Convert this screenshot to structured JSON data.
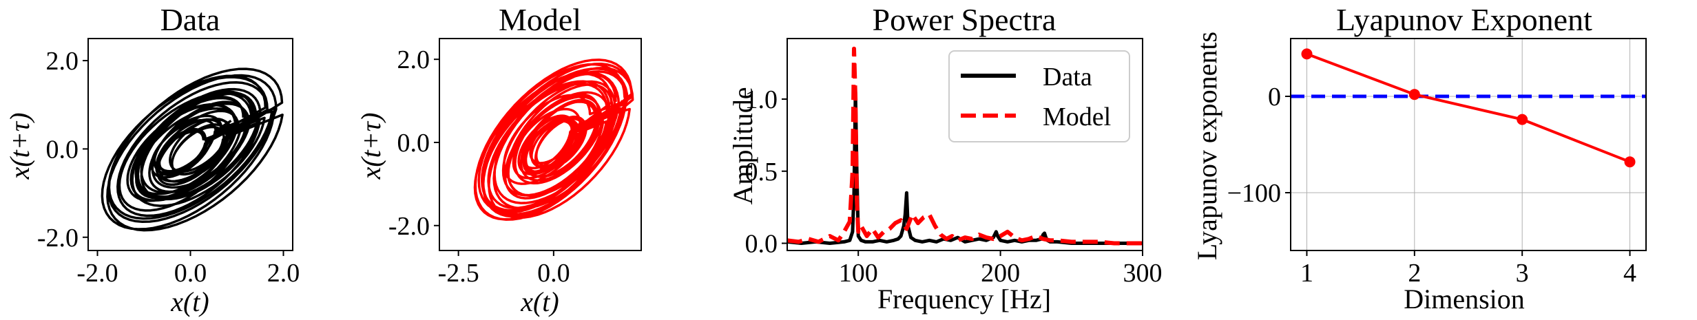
{
  "chart_data": [
    {
      "type": "line",
      "panel": "phase_portrait_data",
      "title": "Data",
      "xlabel": "x(t)",
      "ylabel": "x(t+τ)",
      "xlim": [
        -2.2,
        2.2
      ],
      "ylim": [
        -2.3,
        2.5
      ],
      "xticks": [
        "-2.0",
        "0.0",
        "2.0"
      ],
      "yticks": [
        "-2.0",
        "0.0",
        "2.0"
      ],
      "color": "#000000",
      "grid": false,
      "description_of_trace": "chaotic attractor loops",
      "series": [
        {
          "values": []
        }
      ]
    },
    {
      "type": "line",
      "panel": "phase_portrait_model",
      "title": "Model",
      "xlabel": "x(t)",
      "ylabel": "x(t+τ)",
      "xlim": [
        -3.0,
        2.3
      ],
      "ylim": [
        -2.6,
        2.5
      ],
      "xticks": [
        "-2.5",
        "0.0"
      ],
      "yticks": [
        "-2.0",
        "0.0",
        "2.0"
      ],
      "color": "#ff0000",
      "grid": false,
      "series": [
        {
          "values": []
        }
      ]
    },
    {
      "type": "line",
      "panel": "power_spectra",
      "title": "Power Spectra",
      "xlabel": "Frequency [Hz]",
      "ylabel": "Amplitude",
      "xlim": [
        50,
        300
      ],
      "ylim": [
        -0.05,
        1.42
      ],
      "xticks": [
        "100",
        "200",
        "300"
      ],
      "yticks": [
        "0.0",
        "0.5",
        "1.0"
      ],
      "grid": false,
      "legend": {
        "placement": "top-right"
      },
      "series": [
        {
          "name": "Data",
          "color": "#000000",
          "style": "solid",
          "x": [
            50,
            60,
            70,
            80,
            90,
            94,
            96,
            97,
            98,
            99,
            100,
            102,
            105,
            110,
            115,
            120,
            125,
            128,
            130,
            132,
            133,
            134,
            135,
            137,
            140,
            145,
            150,
            155,
            160,
            165,
            170,
            175,
            180,
            185,
            190,
            195,
            196,
            197,
            198,
            200,
            205,
            210,
            215,
            220,
            225,
            229,
            230,
            231,
            232,
            233,
            235,
            240,
            250,
            260,
            270,
            280,
            290,
            300
          ],
          "y": [
            0.01,
            0.0,
            0.01,
            0.0,
            0.01,
            0.02,
            0.08,
            0.35,
            1.05,
            0.5,
            0.05,
            0.02,
            0.01,
            0.01,
            0.02,
            0.01,
            0.02,
            0.03,
            0.05,
            0.12,
            0.2,
            0.35,
            0.12,
            0.04,
            0.02,
            0.01,
            0.02,
            0.01,
            0.03,
            0.02,
            0.04,
            0.01,
            0.02,
            0.03,
            0.02,
            0.04,
            0.06,
            0.08,
            0.05,
            0.02,
            0.01,
            0.02,
            0.01,
            0.02,
            0.02,
            0.03,
            0.06,
            0.07,
            0.04,
            0.02,
            0.01,
            0.01,
            0.0,
            0.0,
            0.0,
            0.0,
            0.0,
            0.0
          ]
        },
        {
          "name": "Model",
          "color": "#ff0000",
          "style": "dashed",
          "x": [
            50,
            58,
            65,
            72,
            80,
            86,
            90,
            94,
            96,
            97,
            98,
            99,
            100,
            102,
            106,
            110,
            114,
            118,
            122,
            126,
            130,
            134,
            138,
            142,
            146,
            150,
            154,
            158,
            162,
            166,
            170,
            175,
            180,
            185,
            190,
            195,
            200,
            205,
            210,
            215,
            220,
            225,
            230,
            235,
            240,
            250,
            260,
            270,
            280,
            290,
            300
          ],
          "y": [
            0.02,
            0.01,
            0.03,
            0.01,
            0.05,
            0.02,
            0.08,
            0.15,
            0.5,
            1.35,
            1.0,
            0.3,
            0.08,
            0.12,
            0.05,
            0.1,
            0.04,
            0.08,
            0.1,
            0.14,
            0.16,
            0.1,
            0.2,
            0.14,
            0.18,
            0.2,
            0.12,
            0.06,
            0.03,
            0.05,
            0.02,
            0.04,
            0.03,
            0.06,
            0.04,
            0.03,
            0.05,
            0.08,
            0.04,
            0.02,
            0.03,
            0.05,
            0.03,
            0.02,
            0.02,
            0.01,
            0.01,
            0.01,
            0.0,
            0.0,
            0.0
          ]
        }
      ]
    },
    {
      "type": "line",
      "panel": "lyapunov_exponent",
      "title": "Lyapunov Exponent",
      "xlabel": "Dimension",
      "ylabel": "Lyapunov exponents",
      "xlim": [
        0.85,
        4.15
      ],
      "ylim": [
        -160,
        60
      ],
      "xticks": [
        "1",
        "2",
        "3",
        "4"
      ],
      "yticks": [
        "0",
        "−100"
      ],
      "grid": true,
      "reference_line": {
        "y": 0,
        "color": "#0000ff",
        "style": "dashed"
      },
      "series": [
        {
          "color": "#ff0000",
          "marker": "circle",
          "x": [
            1,
            2,
            3,
            4
          ],
          "y": [
            44,
            2,
            -24,
            -68
          ]
        }
      ]
    }
  ]
}
